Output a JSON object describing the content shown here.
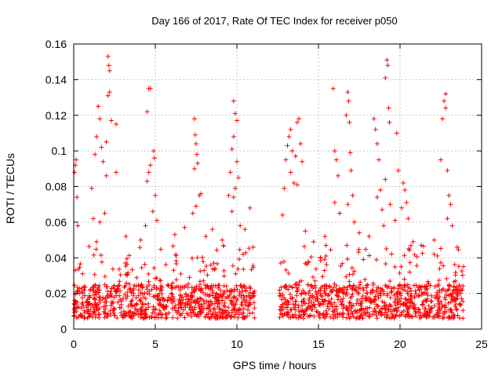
{
  "chart_data": {
    "type": "scatter",
    "title": "Day 166 of 2017, Rate Of TEC Index for receiver p050",
    "xlabel": "GPS time / hours",
    "ylabel": "ROTI / TECUs",
    "xlim": [
      0,
      25
    ],
    "ylim": [
      0,
      0.16
    ],
    "x_ticks": [
      0,
      5,
      10,
      15,
      20,
      25
    ],
    "x_tick_labels": [
      "0",
      "5",
      "10",
      "15",
      "20",
      "25"
    ],
    "y_ticks": [
      0,
      0.02,
      0.04,
      0.06,
      0.08,
      0.1,
      0.12,
      0.14,
      0.16
    ],
    "y_tick_labels": [
      "0",
      "0.02",
      "0.04",
      "0.06",
      "0.08",
      "0.1",
      "0.12",
      "0.14",
      "0.16"
    ],
    "grid": true,
    "marker": "plus",
    "series": [
      {
        "color": "#ff0000",
        "points": [
          [
            0.05,
            0.088
          ],
          [
            0.1,
            0.092
          ],
          [
            0.15,
            0.095
          ],
          [
            0.2,
            0.074
          ],
          [
            0.25,
            0.058
          ],
          [
            0.1,
            0.033
          ],
          [
            0.2,
            0.021
          ],
          [
            0.15,
            0.015
          ],
          [
            1.1,
            0.079
          ],
          [
            1.3,
            0.098
          ],
          [
            1.4,
            0.108
          ],
          [
            1.5,
            0.125
          ],
          [
            1.6,
            0.118
          ],
          [
            1.7,
            0.102
          ],
          [
            1.8,
            0.094
          ],
          [
            2.0,
            0.105
          ],
          [
            2.1,
            0.153
          ],
          [
            2.15,
            0.148
          ],
          [
            2.2,
            0.145
          ],
          [
            2.1,
            0.131
          ],
          [
            2.2,
            0.133
          ],
          [
            2.3,
            0.117
          ],
          [
            2.0,
            0.086
          ],
          [
            2.6,
            0.115
          ],
          [
            2.6,
            0.088
          ],
          [
            1.9,
            0.065
          ],
          [
            1.2,
            0.062
          ],
          [
            1.6,
            0.06
          ],
          [
            4.5,
            0.122
          ],
          [
            4.6,
            0.135
          ],
          [
            4.7,
            0.135
          ],
          [
            4.5,
            0.083
          ],
          [
            4.6,
            0.088
          ],
          [
            4.7,
            0.092
          ],
          [
            4.9,
            0.1
          ],
          [
            4.95,
            0.096
          ],
          [
            5.0,
            0.075
          ],
          [
            4.85,
            0.066
          ],
          [
            4.4,
            0.058
          ],
          [
            5.1,
            0.061
          ],
          [
            7.4,
            0.118
          ],
          [
            7.45,
            0.109
          ],
          [
            7.5,
            0.104
          ],
          [
            7.55,
            0.098
          ],
          [
            7.6,
            0.093
          ],
          [
            7.4,
            0.09
          ],
          [
            7.7,
            0.075
          ],
          [
            7.8,
            0.076
          ],
          [
            7.3,
            0.065
          ],
          [
            7.5,
            0.069
          ],
          [
            9.5,
            0.075
          ],
          [
            9.6,
            0.088
          ],
          [
            9.7,
            0.101
          ],
          [
            9.8,
            0.108
          ],
          [
            9.8,
            0.128
          ],
          [
            9.9,
            0.121
          ],
          [
            10.0,
            0.117
          ],
          [
            10.0,
            0.094
          ],
          [
            10.1,
            0.085
          ],
          [
            9.9,
            0.079
          ],
          [
            9.7,
            0.066
          ],
          [
            10.2,
            0.058
          ],
          [
            10.5,
            0.056
          ],
          [
            10.8,
            0.068
          ],
          [
            9.8,
            0.074
          ],
          [
            12.9,
            0.079
          ],
          [
            13.0,
            0.095
          ],
          [
            13.1,
            0.103
          ],
          [
            13.2,
            0.108
          ],
          [
            13.3,
            0.112
          ],
          [
            13.4,
            0.1
          ],
          [
            13.3,
            0.088
          ],
          [
            13.5,
            0.082
          ],
          [
            13.6,
            0.097
          ],
          [
            13.7,
            0.116
          ],
          [
            13.8,
            0.118
          ],
          [
            13.9,
            0.104
          ],
          [
            14.0,
            0.094
          ],
          [
            13.7,
            0.081
          ],
          [
            12.8,
            0.064
          ],
          [
            15.9,
            0.135
          ],
          [
            16.0,
            0.1
          ],
          [
            16.1,
            0.095
          ],
          [
            16.2,
            0.086
          ],
          [
            16.3,
            0.065
          ],
          [
            16.0,
            0.071
          ],
          [
            16.7,
            0.12
          ],
          [
            16.8,
            0.133
          ],
          [
            16.85,
            0.128
          ],
          [
            16.9,
            0.116
          ],
          [
            16.95,
            0.099
          ],
          [
            17.0,
            0.089
          ],
          [
            17.1,
            0.075
          ],
          [
            16.8,
            0.07
          ],
          [
            17.2,
            0.06
          ],
          [
            18.4,
            0.118
          ],
          [
            18.5,
            0.112
          ],
          [
            18.6,
            0.104
          ],
          [
            18.7,
            0.095
          ],
          [
            18.8,
            0.078
          ],
          [
            18.9,
            0.067
          ],
          [
            19.0,
            0.058
          ],
          [
            19.1,
            0.141
          ],
          [
            19.2,
            0.151
          ],
          [
            19.25,
            0.148
          ],
          [
            19.3,
            0.124
          ],
          [
            19.35,
            0.116
          ],
          [
            19.1,
            0.084
          ],
          [
            19.4,
            0.07
          ],
          [
            18.6,
            0.074
          ],
          [
            19.8,
            0.11
          ],
          [
            19.9,
            0.089
          ],
          [
            20.2,
            0.082
          ],
          [
            20.3,
            0.078
          ],
          [
            20.1,
            0.068
          ],
          [
            20.4,
            0.071
          ],
          [
            20.5,
            0.062
          ],
          [
            19.7,
            0.061
          ],
          [
            22.5,
            0.095
          ],
          [
            22.6,
            0.118
          ],
          [
            22.7,
            0.128
          ],
          [
            22.8,
            0.132
          ],
          [
            22.8,
            0.124
          ],
          [
            22.9,
            0.089
          ],
          [
            23.0,
            0.075
          ],
          [
            23.1,
            0.07
          ],
          [
            22.9,
            0.062
          ],
          [
            23.2,
            0.058
          ],
          [
            1.4,
            0.049
          ],
          [
            3.2,
            0.052
          ],
          [
            4.1,
            0.05
          ],
          [
            6.2,
            0.053
          ],
          [
            6.8,
            0.057
          ],
          [
            8.1,
            0.052
          ],
          [
            8.5,
            0.056
          ],
          [
            9.1,
            0.05
          ],
          [
            11.0,
            0.046
          ],
          [
            14.2,
            0.055
          ],
          [
            14.7,
            0.049
          ],
          [
            15.4,
            0.052
          ],
          [
            17.5,
            0.054
          ],
          [
            18.1,
            0.052
          ],
          [
            20.8,
            0.049
          ],
          [
            21.3,
            0.047
          ],
          [
            22.1,
            0.05
          ],
          [
            23.5,
            0.046
          ]
        ]
      }
    ],
    "dense_band": {
      "segments": [
        [
          0.0,
          11.1
        ],
        [
          12.6,
          23.9
        ]
      ],
      "y_floor": 0.006,
      "y_core_top": 0.025,
      "y_spread_top": 0.047
    }
  }
}
